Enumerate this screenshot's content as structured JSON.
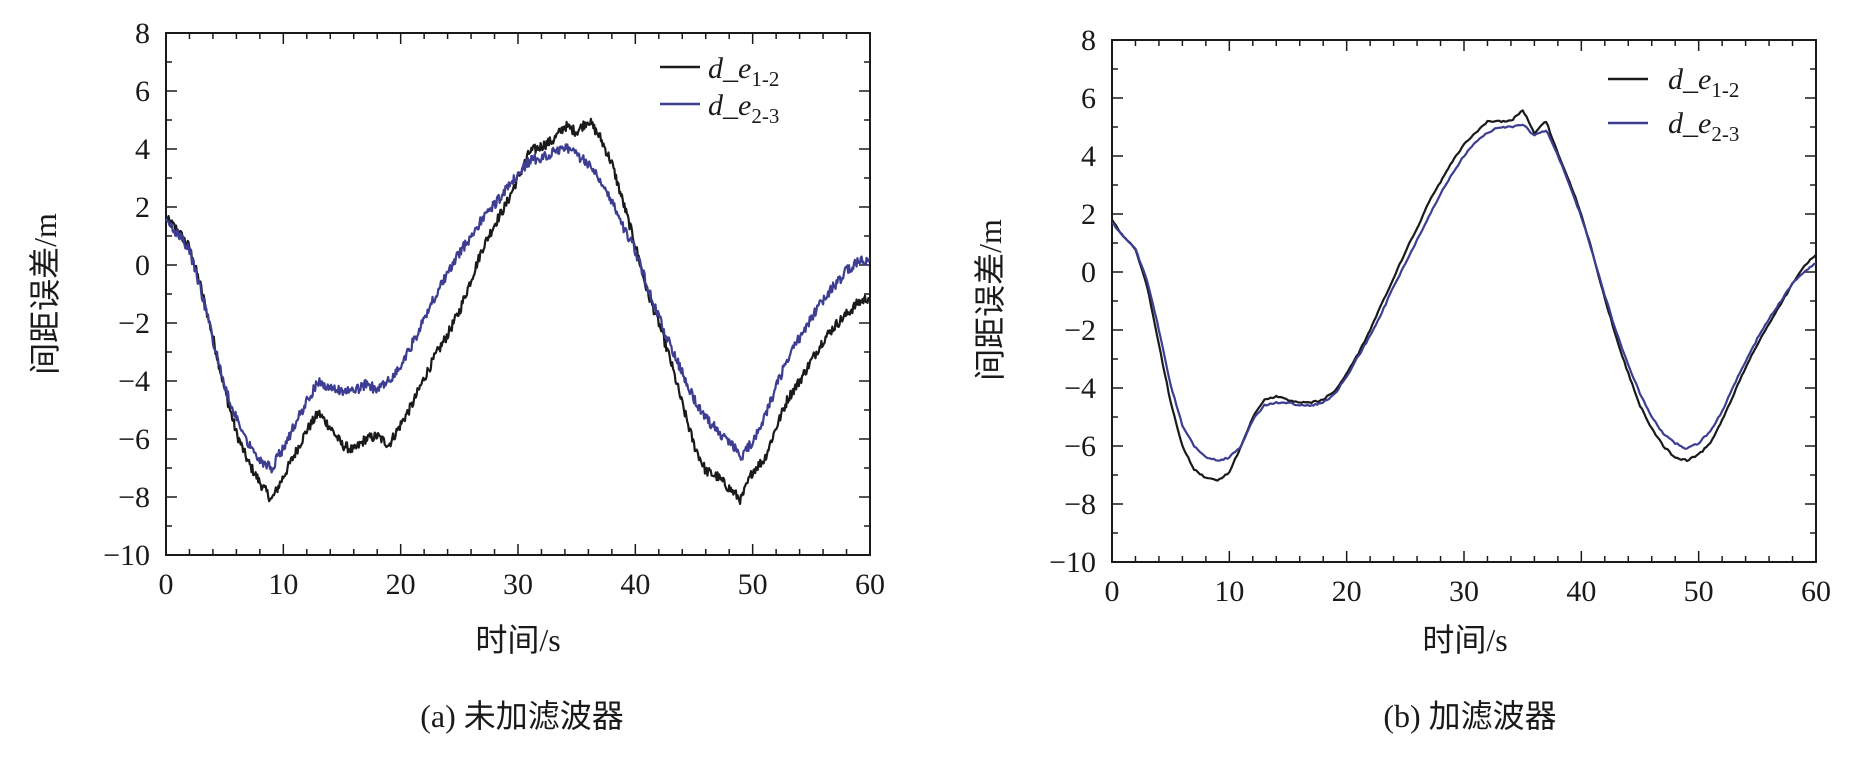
{
  "chart_data": [
    {
      "type": "line",
      "caption": "(a)  未加滤波器",
      "xlabel": "时间/s",
      "ylabel": "间距误差/m",
      "xlim": [
        0,
        60
      ],
      "ylim": [
        -10,
        8
      ],
      "xticks": [
        0,
        10,
        20,
        30,
        40,
        50,
        60
      ],
      "yticks": [
        -10,
        -8,
        -6,
        -4,
        -2,
        0,
        2,
        4,
        6,
        8
      ],
      "ytick_labels": [
        "−10",
        "−8",
        "−6",
        "−4",
        "−2",
        "0",
        "2",
        "4",
        "6",
        "8"
      ],
      "legend_position": "top-right",
      "grid": false,
      "series": [
        {
          "name": "d_e",
          "subscript": "1-2",
          "color": "#1a1a1a",
          "x": [
            0,
            1,
            2,
            3,
            4,
            5,
            6,
            7,
            8,
            9,
            10,
            11,
            12,
            13,
            14,
            15,
            16,
            17,
            18,
            19,
            20,
            21,
            22,
            23,
            24,
            25,
            26,
            27,
            28,
            29,
            30,
            31,
            32,
            33,
            34,
            35,
            36,
            37,
            38,
            39,
            40,
            41,
            42,
            43,
            44,
            45,
            46,
            47,
            48,
            49,
            50,
            51,
            52,
            53,
            54,
            55,
            56,
            57,
            58,
            59,
            60
          ],
          "y": [
            1.6,
            1.2,
            0.6,
            -0.8,
            -2.5,
            -4.3,
            -5.8,
            -6.8,
            -7.5,
            -8.1,
            -7.3,
            -6.5,
            -5.7,
            -5.1,
            -5.6,
            -6.2,
            -6.4,
            -6.0,
            -5.9,
            -6.2,
            -5.5,
            -4.8,
            -3.9,
            -3.1,
            -2.4,
            -1.6,
            -0.5,
            0.6,
            1.4,
            2.1,
            3.0,
            3.9,
            4.1,
            4.3,
            4.8,
            4.6,
            5.0,
            4.4,
            3.5,
            2.1,
            0.7,
            -0.9,
            -2.0,
            -3.3,
            -4.8,
            -6.2,
            -7.1,
            -7.3,
            -7.7,
            -8.1,
            -7.1,
            -6.7,
            -5.6,
            -4.6,
            -4.0,
            -3.3,
            -2.6,
            -2.1,
            -1.7,
            -1.3,
            -1.1
          ]
        },
        {
          "name": "d_e",
          "subscript": "2-3",
          "color": "#3d3d91",
          "x": [
            0,
            1,
            2,
            3,
            4,
            5,
            6,
            7,
            8,
            9,
            10,
            11,
            12,
            13,
            14,
            15,
            16,
            17,
            18,
            19,
            20,
            21,
            22,
            23,
            24,
            25,
            26,
            27,
            28,
            29,
            30,
            31,
            32,
            33,
            34,
            35,
            36,
            37,
            38,
            39,
            40,
            41,
            42,
            43,
            44,
            45,
            46,
            47,
            48,
            49,
            50,
            51,
            52,
            53,
            54,
            55,
            56,
            57,
            58,
            59,
            60
          ],
          "y": [
            1.5,
            1.1,
            0.5,
            -0.9,
            -2.6,
            -4.2,
            -5.3,
            -6.1,
            -6.7,
            -7.0,
            -6.3,
            -5.5,
            -4.7,
            -4.0,
            -4.3,
            -4.3,
            -4.4,
            -4.1,
            -4.3,
            -4.0,
            -3.5,
            -2.7,
            -1.9,
            -1.0,
            -0.3,
            0.4,
            1.0,
            1.6,
            2.1,
            2.6,
            3.1,
            3.6,
            3.7,
            3.9,
            4.1,
            3.8,
            3.5,
            3.0,
            2.2,
            1.3,
            0.5,
            -0.7,
            -1.8,
            -2.8,
            -3.7,
            -4.6,
            -5.3,
            -5.7,
            -6.1,
            -6.6,
            -6.1,
            -5.3,
            -4.2,
            -3.2,
            -2.5,
            -1.8,
            -1.2,
            -0.7,
            -0.2,
            0.1,
            0.2
          ]
        }
      ]
    },
    {
      "type": "line",
      "caption": "(b)  加滤波器",
      "xlabel": "时间/s",
      "ylabel": "间距误差/m",
      "xlim": [
        0,
        60
      ],
      "ylim": [
        -10,
        8
      ],
      "xticks": [
        0,
        10,
        20,
        30,
        40,
        50,
        60
      ],
      "yticks": [
        -10,
        -8,
        -6,
        -4,
        -2,
        0,
        2,
        4,
        6,
        8
      ],
      "ytick_labels": [
        "−10",
        "−8",
        "−6",
        "−4",
        "−2",
        "0",
        "2",
        "4",
        "6",
        "8"
      ],
      "legend_position": "top-right",
      "grid": false,
      "series": [
        {
          "name": "d_e",
          "subscript": "1-2",
          "color": "#1a1a1a",
          "x": [
            0,
            1,
            2,
            3,
            4,
            5,
            6,
            7,
            8,
            9,
            10,
            11,
            12,
            13,
            14,
            15,
            16,
            17,
            18,
            19,
            20,
            21,
            22,
            23,
            24,
            25,
            26,
            27,
            28,
            29,
            30,
            31,
            32,
            33,
            34,
            35,
            36,
            37,
            38,
            39,
            40,
            41,
            42,
            43,
            44,
            45,
            46,
            47,
            48,
            49,
            50,
            51,
            52,
            53,
            54,
            55,
            56,
            57,
            58,
            59,
            60
          ],
          "y": [
            1.8,
            1.2,
            0.8,
            -0.5,
            -2.5,
            -4.5,
            -6.0,
            -6.8,
            -7.1,
            -7.2,
            -6.9,
            -6.0,
            -5.0,
            -4.4,
            -4.3,
            -4.4,
            -4.5,
            -4.5,
            -4.4,
            -4.1,
            -3.5,
            -2.8,
            -2.0,
            -1.1,
            -0.2,
            0.7,
            1.5,
            2.4,
            3.1,
            3.8,
            4.4,
            4.8,
            5.2,
            5.2,
            5.2,
            5.6,
            4.8,
            5.2,
            4.1,
            3.1,
            2.0,
            0.6,
            -0.9,
            -2.3,
            -3.5,
            -4.6,
            -5.4,
            -6.0,
            -6.4,
            -6.5,
            -6.3,
            -5.9,
            -5.1,
            -4.2,
            -3.3,
            -2.5,
            -1.8,
            -1.1,
            -0.4,
            0.2,
            0.6
          ]
        },
        {
          "name": "d_e",
          "subscript": "2-3",
          "color": "#3d3d91",
          "x": [
            0,
            1,
            2,
            3,
            4,
            5,
            6,
            7,
            8,
            9,
            10,
            11,
            12,
            13,
            14,
            15,
            16,
            17,
            18,
            19,
            20,
            21,
            22,
            23,
            24,
            25,
            26,
            27,
            28,
            29,
            30,
            31,
            32,
            33,
            34,
            35,
            36,
            37,
            38,
            39,
            40,
            41,
            42,
            43,
            44,
            45,
            46,
            47,
            48,
            49,
            50,
            51,
            52,
            53,
            54,
            55,
            56,
            57,
            58,
            59,
            60
          ],
          "y": [
            1.7,
            1.2,
            0.8,
            -0.3,
            -2.0,
            -3.9,
            -5.3,
            -6.0,
            -6.4,
            -6.5,
            -6.4,
            -6.0,
            -5.1,
            -4.6,
            -4.5,
            -4.5,
            -4.6,
            -4.6,
            -4.5,
            -4.2,
            -3.6,
            -2.9,
            -2.2,
            -1.4,
            -0.5,
            0.3,
            1.1,
            1.9,
            2.7,
            3.4,
            4.0,
            4.5,
            4.8,
            5.0,
            5.0,
            5.1,
            4.7,
            4.9,
            4.0,
            3.0,
            1.9,
            0.6,
            -0.8,
            -2.1,
            -3.2,
            -4.2,
            -5.0,
            -5.6,
            -5.9,
            -6.1,
            -5.9,
            -5.5,
            -4.8,
            -3.9,
            -3.1,
            -2.3,
            -1.6,
            -1.0,
            -0.4,
            0.0,
            0.3
          ]
        }
      ]
    }
  ]
}
